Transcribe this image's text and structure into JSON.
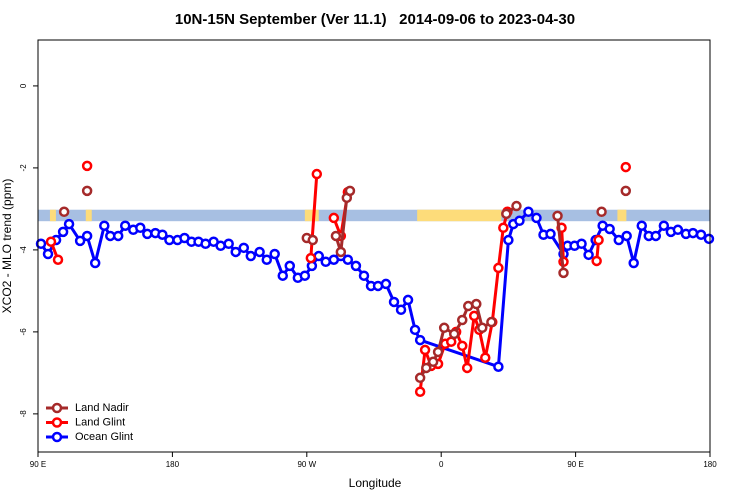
{
  "chart_data": {
    "type": "line",
    "title": "10N-15N September (Ver 11.1)   2014-09-06 to 2023-04-30",
    "x_label": "Longitude",
    "y_label": "XCO2 - MLO trend (ppm)",
    "xlim": [
      90,
      540
    ],
    "ylim": [
      -8.93,
      1.12
    ],
    "xticks": [
      {
        "value": 90,
        "label": "90 E"
      },
      {
        "value": 180,
        "label": "180"
      },
      {
        "value": 270,
        "label": "90 W"
      },
      {
        "value": 360,
        "label": "0"
      },
      {
        "value": 450,
        "label": "90 E"
      },
      {
        "value": 540,
        "label": "180"
      }
    ],
    "yticks": [
      0,
      -2,
      -4,
      -6,
      -8
    ],
    "legend": "bottom-left",
    "band": {
      "ylim": [
        -3.02,
        -3.3
      ],
      "color": "#a7bfe2",
      "land_color": "#fddc7a",
      "land": [
        [
          98,
          102
        ],
        [
          122,
          126
        ],
        [
          268.7,
          278
        ],
        [
          343.9,
          400.3
        ],
        [
          478,
          484
        ]
      ]
    },
    "series": [
      {
        "name": "Land Nadir",
        "color": "#a52a2a",
        "x": [
          107.5,
          null,
          122.9,
          null,
          270.0,
          274.0,
          null,
          289.5,
          292.8,
          296.8,
          298.9,
          null,
          345.9,
          350.0,
          354.6,
          357.9,
          362.0,
          368.7,
          374.1,
          378.1,
          383.5,
          387.5,
          393.6,
          null,
          403.6,
          410.4,
          null,
          437.9,
          441.9,
          null,
          467.4,
          null,
          483.6
        ],
        "values": [
          -3.07,
          null,
          -2.56,
          null,
          -3.71,
          -3.76,
          null,
          -3.66,
          -4.05,
          -2.73,
          -2.56,
          null,
          -7.12,
          -6.88,
          -6.73,
          -6.49,
          -5.9,
          -6.05,
          -5.71,
          -5.37,
          -5.32,
          -5.9,
          -5.76,
          null,
          -3.12,
          -2.93,
          null,
          -3.17,
          -4.56,
          null,
          -3.07,
          null,
          -2.56
        ]
      },
      {
        "name": "Land Glint",
        "color": "#ff0000",
        "x": [
          98.7,
          103.4,
          null,
          122.9,
          null,
          272.7,
          276.7,
          null,
          288.1,
          292.8,
          297.5,
          null,
          345.9,
          349.2,
          353.3,
          357.9,
          362.7,
          366.7,
          370.0,
          374.1,
          377.4,
          382.1,
          385.5,
          389.5,
          394.2,
          398.3,
          401.6,
          404.3,
          null,
          440.6,
          441.9,
          null,
          464.1,
          465.4,
          null,
          483.6
        ],
        "values": [
          -3.8,
          -4.24,
          null,
          -1.95,
          null,
          -4.2,
          -2.15,
          null,
          -3.22,
          -3.66,
          -2.59,
          null,
          -7.46,
          -6.44,
          -6.83,
          -6.78,
          -6.29,
          -6.24,
          -6.0,
          -6.34,
          -6.88,
          -5.61,
          -5.95,
          -6.63,
          -5.76,
          -4.44,
          -3.46,
          -3.07,
          null,
          -3.46,
          -4.29,
          null,
          -4.27,
          -3.76,
          null,
          -1.98
        ]
      },
      {
        "name": "Ocean Glint",
        "color": "#0000ff",
        "x": [
          92.0,
          96.7,
          102.1,
          106.8,
          110.8,
          118.2,
          122.9,
          128.3,
          134.4,
          138.4,
          143.7,
          148.4,
          153.8,
          158.5,
          163.2,
          168.6,
          173.3,
          178.0,
          183.4,
          188.1,
          192.8,
          197.5,
          202.2,
          207.6,
          212.3,
          217.7,
          222.4,
          227.8,
          232.5,
          238.4,
          243.2,
          248.5,
          253.9,
          258.6,
          264.0,
          268.7,
          273.4,
          278.0,
          282.7,
          288.1,
          292.8,
          297.5,
          302.9,
          308.3,
          313.0,
          317.7,
          323.0,
          328.4,
          333.1,
          337.8,
          342.5,
          345.9,
          398.3,
          405.0,
          408.3,
          412.4,
          418.4,
          423.8,
          428.5,
          433.2,
          441.9,
          444.6,
          449.3,
          454.0,
          458.7,
          463.4,
          468.1,
          472.8,
          478.9,
          484.2,
          488.9,
          494.3,
          499.0,
          503.7,
          509.1,
          513.8,
          518.5,
          523.9,
          528.6,
          534.0,
          539.3
        ],
        "values": [
          -3.85,
          -4.1,
          -3.76,
          -3.56,
          -3.37,
          -3.78,
          -3.66,
          -4.32,
          -3.41,
          -3.66,
          -3.66,
          -3.41,
          -3.51,
          -3.46,
          -3.61,
          -3.59,
          -3.63,
          -3.76,
          -3.76,
          -3.71,
          -3.8,
          -3.8,
          -3.85,
          -3.8,
          -3.9,
          -3.85,
          -4.05,
          -3.95,
          -4.15,
          -4.05,
          -4.24,
          -4.1,
          -4.63,
          -4.39,
          -4.68,
          -4.63,
          -4.39,
          -4.15,
          -4.29,
          -4.24,
          -4.15,
          -4.24,
          -4.39,
          -4.63,
          -4.88,
          -4.88,
          -4.83,
          -5.27,
          -5.46,
          -5.22,
          -5.95,
          -6.2,
          -6.85,
          -3.76,
          -3.37,
          -3.29,
          -3.07,
          -3.22,
          -3.63,
          -3.61,
          -4.1,
          -3.9,
          -3.9,
          -3.85,
          -4.12,
          -3.76,
          -3.41,
          -3.49,
          -3.76,
          -3.66,
          -4.32,
          -3.41,
          -3.66,
          -3.66,
          -3.41,
          -3.56,
          -3.51,
          -3.61,
          -3.59,
          -3.63,
          -3.73
        ]
      }
    ]
  }
}
